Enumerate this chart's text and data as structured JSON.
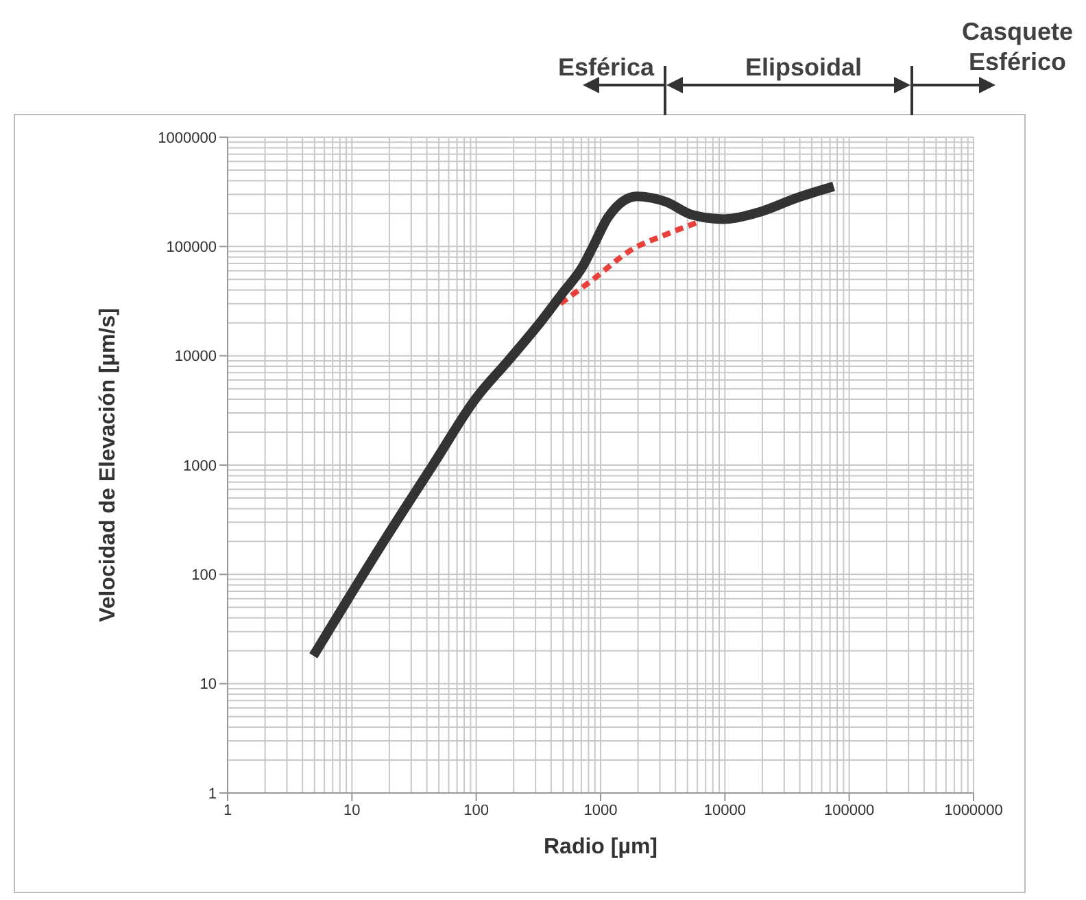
{
  "chart_data": {
    "type": "line",
    "xlabel": "Radio [µm]",
    "ylabel": "Velocidad de Elevación [µm/s]",
    "log": "xy",
    "xlim": [
      1,
      1000000
    ],
    "ylim": [
      1,
      1000000
    ],
    "xticks": [
      1,
      10,
      100,
      1000,
      10000,
      100000,
      1000000
    ],
    "yticks": [
      1,
      10,
      100,
      1000,
      10000,
      100000,
      1000000
    ],
    "grid": true,
    "annotations": [
      "Esférica",
      "Elipsoidal",
      "Casquete Esférico"
    ],
    "series": [
      {
        "color": "#e8413c",
        "line_style": "dashed",
        "x": [
          475,
          850,
          1820,
          3370,
          6000
        ],
        "values": [
          30000,
          49000,
          95000,
          129000,
          166000
        ]
      },
      {
        "color": "#333333",
        "line_style": "solid",
        "x": [
          4.9,
          18,
          46,
          98,
          182,
          336,
          490,
          720,
          870,
          1150,
          1960,
          3370,
          5350,
          9800,
          18000,
          39000,
          75000
        ],
        "values": [
          18,
          200,
          1050,
          4000,
          9100,
          21000,
          37000,
          66000,
          100000,
          186000,
          288000,
          256000,
          196000,
          178000,
          203000,
          282000,
          355000
        ]
      }
    ]
  }
}
